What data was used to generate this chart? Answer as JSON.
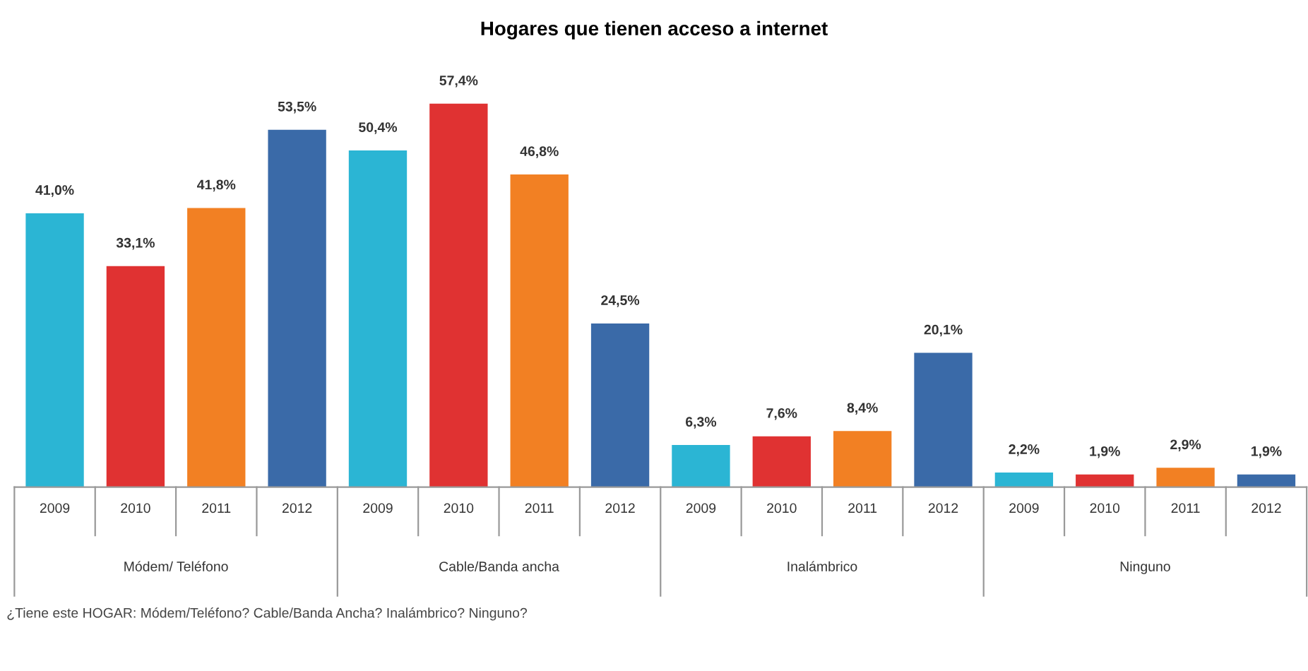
{
  "chart_data": {
    "type": "bar",
    "title": "Hogares que tienen acceso a internet",
    "categories": [
      "Módem/ Teléfono",
      "Cable/Banda ancha",
      "Inalámbrico",
      "Ninguno"
    ],
    "series": [
      {
        "name": "2009",
        "color": "#2bb5d4",
        "values": [
          41.0,
          50.4,
          6.3,
          2.2
        ],
        "value_labels": [
          "41,0%",
          "50,4%",
          "6,3%",
          "2,2%"
        ]
      },
      {
        "name": "2010",
        "color": "#e03232",
        "values": [
          33.1,
          57.4,
          7.6,
          1.9
        ],
        "value_labels": [
          "33,1%",
          "57,4%",
          "7,6%",
          "1,9%"
        ]
      },
      {
        "name": "2011",
        "color": "#f28023",
        "values": [
          41.8,
          46.8,
          8.4,
          2.9
        ],
        "value_labels": [
          "41,8%",
          "46,8%",
          "8,4%",
          "2,9%"
        ]
      },
      {
        "name": "2012",
        "color": "#3a6aa8",
        "values": [
          53.5,
          24.5,
          20.1,
          1.9
        ],
        "value_labels": [
          "53,5%",
          "24,5%",
          "20,1%",
          "1,9%"
        ]
      }
    ],
    "annotations": [
      "¿Tiene este HOGAR: Módem/Teléfono? Cable/Banda Ancha? Inalámbrico? Ninguno?"
    ],
    "grid": false,
    "legend": false
  }
}
